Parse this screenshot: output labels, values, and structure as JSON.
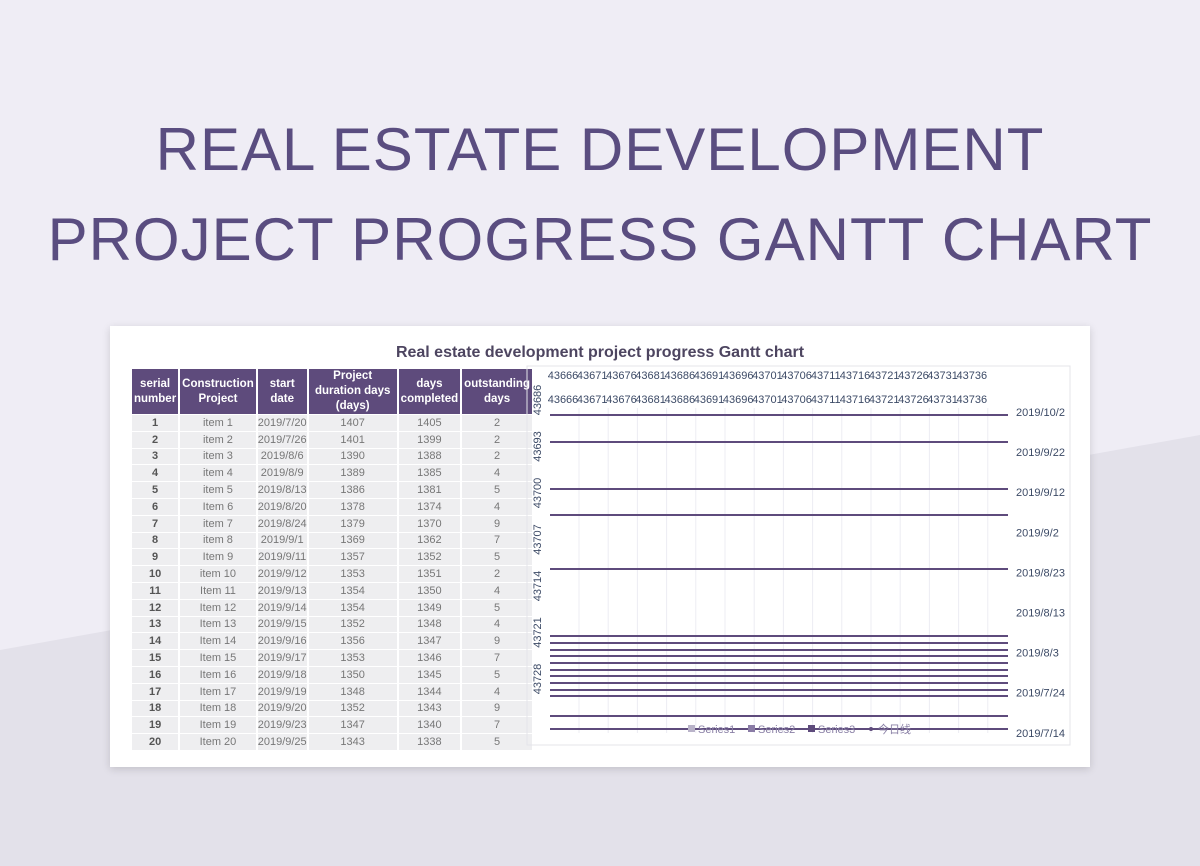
{
  "page_title_line1": "REAL ESTATE DEVELOPMENT",
  "page_title_line2": "PROJECT PROGRESS GANTT CHART",
  "table": {
    "headers": [
      "serial number",
      "Construction Project",
      "start date",
      "Project duration days (days)",
      "days completed",
      "outstanding days"
    ],
    "rows": [
      [
        "1",
        "item 1",
        "2019/7/20",
        "1407",
        "1405",
        "2"
      ],
      [
        "2",
        "item 2",
        "2019/7/26",
        "1401",
        "1399",
        "2"
      ],
      [
        "3",
        "item 3",
        "2019/8/6",
        "1390",
        "1388",
        "2"
      ],
      [
        "4",
        "item 4",
        "2019/8/9",
        "1389",
        "1385",
        "4"
      ],
      [
        "5",
        "item 5",
        "2019/8/13",
        "1386",
        "1381",
        "5"
      ],
      [
        "6",
        "Item 6",
        "2019/8/20",
        "1378",
        "1374",
        "4"
      ],
      [
        "7",
        "item 7",
        "2019/8/24",
        "1379",
        "1370",
        "9"
      ],
      [
        "8",
        "item 8",
        "2019/9/1",
        "1369",
        "1362",
        "7"
      ],
      [
        "9",
        "Item 9",
        "2019/9/11",
        "1357",
        "1352",
        "5"
      ],
      [
        "10",
        "item 10",
        "2019/9/12",
        "1353",
        "1351",
        "2"
      ],
      [
        "11",
        "Item 11",
        "2019/9/13",
        "1354",
        "1350",
        "4"
      ],
      [
        "12",
        "Item 12",
        "2019/9/14",
        "1354",
        "1349",
        "5"
      ],
      [
        "13",
        "Item 13",
        "2019/9/15",
        "1352",
        "1348",
        "4"
      ],
      [
        "14",
        "Item 14",
        "2019/9/16",
        "1356",
        "1347",
        "9"
      ],
      [
        "15",
        "Item 15",
        "2019/9/17",
        "1353",
        "1346",
        "7"
      ],
      [
        "16",
        "Item 16",
        "2019/9/18",
        "1350",
        "1345",
        "5"
      ],
      [
        "17",
        "Item 17",
        "2019/9/19",
        "1348",
        "1344",
        "4"
      ],
      [
        "18",
        "Item 18",
        "2019/9/20",
        "1352",
        "1343",
        "9"
      ],
      [
        "19",
        "Item 19",
        "2019/9/23",
        "1347",
        "1340",
        "7"
      ],
      [
        "20",
        "Item 20",
        "2019/9/25",
        "1343",
        "1338",
        "5"
      ]
    ]
  },
  "chart_data": {
    "type": "bar",
    "title": "Real estate development project progress Gantt chart",
    "x_ticks": [
      "43666",
      "43671",
      "43676",
      "43681",
      "43686",
      "43691",
      "43696",
      "43701",
      "43706",
      "43711",
      "43716",
      "43721",
      "43726",
      "43731",
      "43736"
    ],
    "y_ticks_left": [
      "43686",
      "43693",
      "43700",
      "43707",
      "43714",
      "43721",
      "43728"
    ],
    "y_ticks_right": [
      "2019/10/2",
      "2019/9/22",
      "2019/9/12",
      "2019/9/2",
      "2019/8/23",
      "2019/8/13",
      "2019/8/3",
      "2019/7/24",
      "2019/7/14"
    ],
    "legend": [
      "Series1",
      "Series2",
      "Series3",
      "今日线"
    ],
    "legend_placement": "bottom",
    "grid": true,
    "colors": {
      "series1": "#b9b3c9",
      "series2": "#8a7ca6",
      "series3": "#5e4b7c",
      "today": "#5e4b7c"
    }
  }
}
